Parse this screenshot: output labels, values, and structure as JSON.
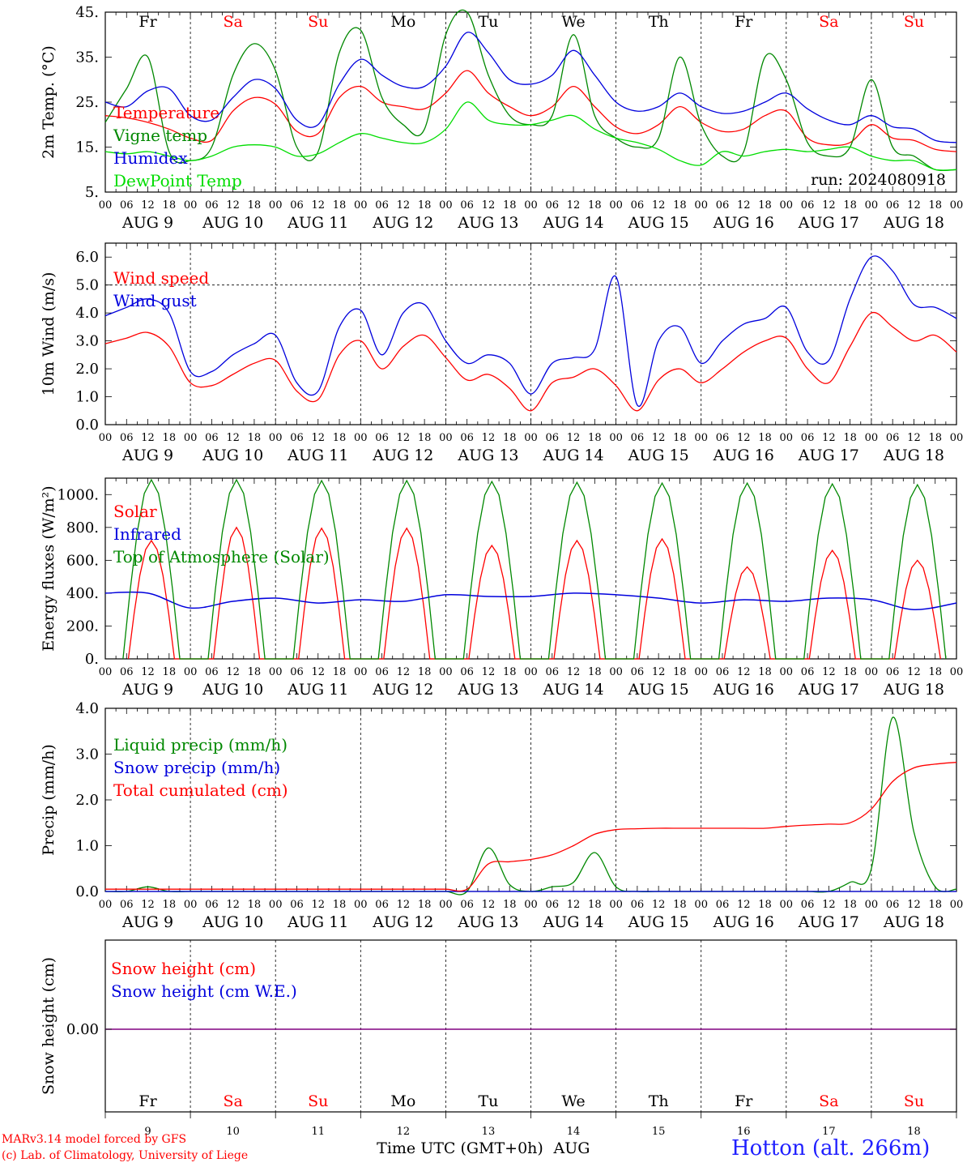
{
  "chart_data": [
    {
      "type": "line",
      "ylabel": "2m Temp. (°C)",
      "ylim": [
        5,
        45
      ],
      "yticks": [
        "45.",
        "35.",
        "25.",
        "15.",
        "5."
      ],
      "yticks_values": [
        45,
        35,
        25,
        15,
        5
      ],
      "run_label": "run: 2024080918",
      "x_hours": [
        0,
        6,
        12,
        18,
        24,
        30,
        36,
        42,
        48,
        54,
        60,
        66,
        72,
        78,
        84,
        90,
        96,
        102,
        108,
        114,
        120,
        126,
        132,
        138,
        144,
        150,
        156,
        162,
        168,
        174,
        180,
        186,
        192,
        198,
        204,
        210,
        216,
        222,
        228,
        234,
        240
      ],
      "series": [
        {
          "name": "Temperature",
          "color": "#ff0000",
          "values": [
            22,
            21.5,
            20.5,
            19,
            17,
            16.5,
            23,
            26,
            24.5,
            18.5,
            18,
            26,
            28.5,
            25,
            24,
            23.5,
            27,
            32,
            27,
            24,
            22,
            24,
            28.5,
            24,
            19.5,
            18,
            20,
            24,
            20.5,
            18.5,
            19,
            22,
            23,
            17,
            15.5,
            16,
            20,
            17,
            16.5,
            14.5,
            14
          ]
        },
        {
          "name": "Vigne temp",
          "color": "#008800",
          "values": [
            20.5,
            28,
            35,
            14,
            12,
            15,
            31,
            38,
            32,
            15,
            14,
            36,
            41,
            26,
            20,
            19,
            40,
            45,
            31,
            22,
            20,
            22,
            40,
            22,
            17,
            15,
            17,
            35,
            20,
            13,
            14,
            35,
            30,
            16,
            13,
            15,
            30,
            15,
            13,
            10,
            10
          ]
        },
        {
          "name": "Humidex",
          "color": "#0000dd",
          "values": [
            25,
            24,
            27.5,
            28,
            22,
            21,
            26,
            30,
            28,
            21,
            20,
            29,
            34.5,
            31,
            28.5,
            28.5,
            33,
            40.5,
            36,
            30,
            29,
            31,
            36.5,
            31,
            25,
            23,
            24,
            27,
            24,
            22.5,
            23,
            25,
            27,
            23.5,
            21,
            20,
            22,
            19.5,
            19,
            16.5,
            16
          ]
        },
        {
          "name": "DewPoint Temp",
          "color": "#00dd00",
          "values": [
            14,
            13.5,
            14,
            13,
            12,
            13,
            15,
            15.5,
            15,
            13,
            13.5,
            16,
            18,
            17,
            16,
            16,
            19,
            25,
            21,
            20,
            20,
            21,
            22,
            19,
            17,
            16,
            14.5,
            12,
            11,
            14,
            13,
            14,
            14.5,
            14,
            14.5,
            15,
            13,
            12,
            12,
            10,
            10
          ]
        }
      ]
    },
    {
      "type": "line",
      "ylabel": "10m Wind (m/s)",
      "ylim": [
        0,
        6.5
      ],
      "yticks": [
        "6.0",
        "5.0",
        "4.0",
        "3.0",
        "2.0",
        "1.0",
        "0.0"
      ],
      "yticks_values": [
        6,
        5,
        4,
        3,
        2,
        1,
        0
      ],
      "reference_line": 5.0,
      "x_hours": [
        0,
        6,
        12,
        18,
        24,
        30,
        36,
        42,
        48,
        54,
        60,
        66,
        72,
        78,
        84,
        90,
        96,
        102,
        108,
        114,
        120,
        126,
        132,
        138,
        144,
        150,
        156,
        162,
        168,
        174,
        180,
        186,
        192,
        198,
        204,
        210,
        216,
        222,
        228,
        234,
        240
      ],
      "series": [
        {
          "name": "Wind speed",
          "color": "#ff0000",
          "values": [
            2.9,
            3.1,
            3.3,
            2.8,
            1.5,
            1.4,
            1.8,
            2.2,
            2.3,
            1.2,
            0.9,
            2.5,
            3.0,
            2.0,
            2.8,
            3.2,
            2.4,
            1.6,
            1.8,
            1.3,
            0.5,
            1.5,
            1.7,
            2.0,
            1.4,
            0.5,
            1.6,
            2.0,
            1.5,
            2.0,
            2.6,
            3.0,
            3.1,
            2.0,
            1.5,
            2.8,
            4.0,
            3.5,
            3.0,
            3.2,
            2.6
          ]
        },
        {
          "name": "Wind gust",
          "color": "#0000dd",
          "values": [
            3.9,
            4.2,
            4.5,
            4.0,
            1.9,
            1.9,
            2.5,
            2.9,
            3.2,
            1.5,
            1.2,
            3.5,
            4.1,
            2.5,
            4.0,
            4.3,
            3.0,
            2.2,
            2.5,
            2.2,
            1.1,
            2.2,
            2.4,
            2.7,
            5.3,
            0.7,
            3.0,
            3.5,
            2.2,
            3.0,
            3.6,
            3.8,
            4.2,
            2.6,
            2.3,
            4.5,
            6.0,
            5.5,
            4.3,
            4.2,
            3.8
          ]
        }
      ]
    },
    {
      "type": "line",
      "ylabel": "Energy fluxes (W/m²)",
      "ylim": [
        0,
        1100
      ],
      "yticks": [
        "1000.",
        "800.",
        "600.",
        "400.",
        "200.",
        "0."
      ],
      "yticks_values": [
        1000,
        800,
        600,
        400,
        200,
        0
      ],
      "series": [
        {
          "name": "Solar",
          "color": "#ff0000",
          "daily_peak_values": [
            720,
            800,
            795,
            795,
            690,
            720,
            730,
            560,
            660,
            600
          ]
        },
        {
          "name": "Infrared",
          "color": "#0000dd",
          "x_hours": [
            0,
            12,
            24,
            36,
            48,
            60,
            72,
            84,
            96,
            108,
            120,
            132,
            144,
            156,
            168,
            180,
            192,
            204,
            216,
            228,
            240
          ],
          "values": [
            400,
            400,
            310,
            350,
            370,
            340,
            360,
            350,
            390,
            380,
            380,
            400,
            390,
            370,
            340,
            360,
            350,
            370,
            360,
            300,
            340
          ]
        },
        {
          "name": "Top of Atmosphere (Solar)",
          "color": "#008800",
          "daily_peak_values": [
            1090,
            1090,
            1085,
            1085,
            1080,
            1075,
            1070,
            1070,
            1065,
            1060
          ]
        }
      ]
    },
    {
      "type": "line",
      "ylabel": "Precip (mm/h)",
      "ylim": [
        0,
        4.0
      ],
      "yticks": [
        "4.0",
        "3.0",
        "2.0",
        "1.0",
        "0.0"
      ],
      "yticks_values": [
        4,
        3,
        2,
        1,
        0
      ],
      "x_hours": [
        0,
        6,
        12,
        18,
        24,
        30,
        36,
        42,
        48,
        54,
        60,
        66,
        72,
        78,
        84,
        90,
        96,
        102,
        108,
        114,
        120,
        126,
        132,
        138,
        144,
        150,
        156,
        162,
        168,
        174,
        180,
        186,
        192,
        198,
        204,
        210,
        216,
        222,
        228,
        234,
        240
      ],
      "series": [
        {
          "name": "Liquid precip (mm/h)",
          "color": "#008800",
          "values": [
            0,
            0,
            0.1,
            0,
            0,
            0,
            0,
            0,
            0,
            0,
            0,
            0,
            0,
            0,
            0,
            0,
            0,
            0,
            0.95,
            0.15,
            0,
            0.1,
            0.2,
            0.85,
            0.1,
            0,
            0,
            0,
            0,
            0,
            0,
            0,
            0,
            0,
            0,
            0.2,
            0.5,
            3.8,
            1.3,
            0.1,
            0.05
          ]
        },
        {
          "name": "Snow precip (mm/h)",
          "color": "#0000dd",
          "values": [
            0,
            0,
            0,
            0,
            0,
            0,
            0,
            0,
            0,
            0,
            0,
            0,
            0,
            0,
            0,
            0,
            0,
            0,
            0,
            0,
            0,
            0,
            0,
            0,
            0,
            0,
            0,
            0,
            0,
            0,
            0,
            0,
            0,
            0,
            0,
            0,
            0,
            0,
            0,
            0,
            0
          ]
        },
        {
          "name": "Total cumulated (cm)",
          "color": "#ff0000",
          "values": [
            0.05,
            0.05,
            0.05,
            0.05,
            0.05,
            0.05,
            0.05,
            0.05,
            0.05,
            0.05,
            0.05,
            0.05,
            0.05,
            0.05,
            0.05,
            0.05,
            0.05,
            0.05,
            0.6,
            0.65,
            0.7,
            0.8,
            1.0,
            1.25,
            1.35,
            1.37,
            1.38,
            1.38,
            1.38,
            1.38,
            1.38,
            1.38,
            1.42,
            1.45,
            1.47,
            1.5,
            1.8,
            2.4,
            2.7,
            2.78,
            2.82
          ]
        }
      ]
    },
    {
      "type": "line",
      "ylabel": "Snow height (cm)",
      "yticks": [
        "0.00"
      ],
      "yticks_values": [
        0
      ],
      "series": [
        {
          "name": "Snow height (cm)",
          "color": "#ff0000"
        },
        {
          "name": "Snow height (cm W.E.)",
          "color": "#0000dd"
        }
      ],
      "line_value": 0.0
    }
  ],
  "day_labels": [
    {
      "name": "Fr",
      "color": "#000000"
    },
    {
      "name": "Sa",
      "color": "#ff0000"
    },
    {
      "name": "Su",
      "color": "#ff0000"
    },
    {
      "name": "Mo",
      "color": "#000000"
    },
    {
      "name": "Tu",
      "color": "#000000"
    },
    {
      "name": "We",
      "color": "#000000"
    },
    {
      "name": "Th",
      "color": "#000000"
    },
    {
      "name": "Fr",
      "color": "#000000"
    },
    {
      "name": "Sa",
      "color": "#ff0000"
    },
    {
      "name": "Su",
      "color": "#ff0000"
    }
  ],
  "date_labels": [
    "AUG  9",
    "AUG 10",
    "AUG 11",
    "AUG 12",
    "AUG 13",
    "AUG 14",
    "AUG 15",
    "AUG 16",
    "AUG 17",
    "AUG 18"
  ],
  "hour_tick_labels": [
    "00",
    "06",
    "12",
    "18"
  ],
  "day_numbers": [
    "9",
    "10",
    "11",
    "12",
    "13",
    "14",
    "15",
    "16",
    "17",
    "18"
  ],
  "xlabel": "Time UTC (GMT+0h)",
  "month_label": "AUG",
  "footer": {
    "model_line": "MARv3.14 model forced by GFS",
    "credit_line": "(c) Lab. of Climatology, University of Liege",
    "station": "Hotton (alt. 266m)"
  },
  "colors": {
    "red": "#ff0000",
    "green": "#008800",
    "blue": "#0000dd",
    "light_green": "#00dd00",
    "snow_line": "#800080"
  }
}
